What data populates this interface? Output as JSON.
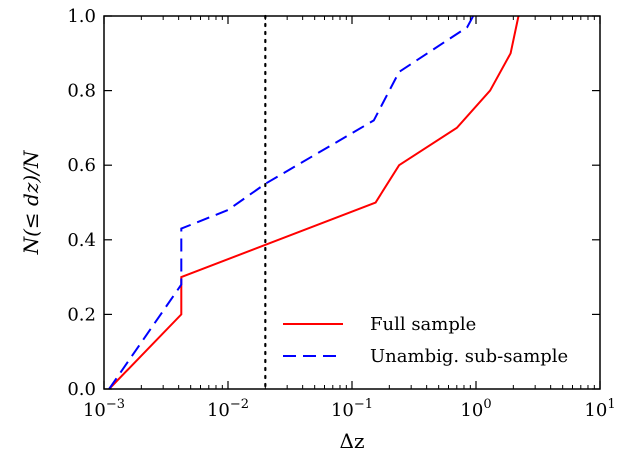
{
  "chart_data": {
    "type": "line",
    "title": "",
    "xlabel": "Δz",
    "ylabel": "N(≤ dz)/N",
    "xscale": "log",
    "xlim": [
      0.001,
      10
    ],
    "ylim": [
      0.0,
      1.0
    ],
    "xticks": [
      {
        "value": 0.001,
        "base": "10",
        "exp": "−3"
      },
      {
        "value": 0.01,
        "base": "10",
        "exp": "−2"
      },
      {
        "value": 0.1,
        "base": "10",
        "exp": "−1"
      },
      {
        "value": 1,
        "base": "10",
        "exp": "0"
      },
      {
        "value": 10,
        "base": "10",
        "exp": "1"
      }
    ],
    "yticks": [
      {
        "value": 0.0,
        "label": "0.0"
      },
      {
        "value": 0.2,
        "label": "0.2"
      },
      {
        "value": 0.4,
        "label": "0.4"
      },
      {
        "value": 0.6,
        "label": "0.6"
      },
      {
        "value": 0.8,
        "label": "0.8"
      },
      {
        "value": 1.0,
        "label": "1.0"
      }
    ],
    "vline": {
      "x": 0.02,
      "style": "dotted",
      "color": "#000000"
    },
    "grid": false,
    "legend_position": "lower-right",
    "series": [
      {
        "name": "Full sample",
        "color": "#ff0000",
        "dash": "solid",
        "points": [
          [
            0.0011,
            0.0
          ],
          [
            0.0042,
            0.2
          ],
          [
            0.0042,
            0.3
          ],
          [
            0.155,
            0.5
          ],
          [
            0.24,
            0.6
          ],
          [
            0.7,
            0.7
          ],
          [
            1.3,
            0.8
          ],
          [
            1.9,
            0.9
          ],
          [
            2.2,
            1.0
          ]
        ]
      },
      {
        "name": "Unambig. sub-sample",
        "color": "#0000ff",
        "dash": "dashed",
        "points": [
          [
            0.0011,
            0.0
          ],
          [
            0.0042,
            0.28
          ],
          [
            0.0042,
            0.43
          ],
          [
            0.01,
            0.48
          ],
          [
            0.02,
            0.55
          ],
          [
            0.15,
            0.72
          ],
          [
            0.24,
            0.85
          ],
          [
            0.85,
            0.97
          ],
          [
            0.95,
            1.0
          ]
        ]
      }
    ]
  }
}
